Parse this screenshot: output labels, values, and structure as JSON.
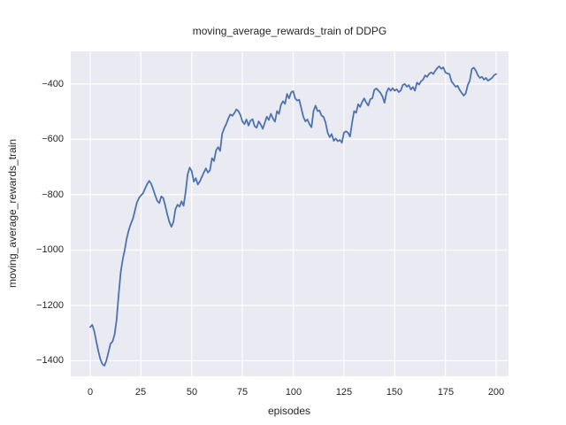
{
  "chart_data": {
    "type": "line",
    "title": "moving_average_rewards_train of DDPG",
    "xlabel": "episodes",
    "ylabel": "moving_average_rewards_train",
    "xlim": [
      -9.6,
      206.1
    ],
    "ylim": [
      -1456,
      -282
    ],
    "xticks": [
      0,
      25,
      50,
      75,
      100,
      125,
      150,
      175,
      200
    ],
    "xtick_labels": [
      "0",
      "25",
      "50",
      "75",
      "100",
      "125",
      "150",
      "175",
      "200"
    ],
    "yticks": [
      -400,
      -600,
      -800,
      -1000,
      -1200,
      -1400
    ],
    "ytick_labels": [
      "−400",
      "−600",
      "−800",
      "−1000",
      "−1200",
      "−1400"
    ],
    "grid": true,
    "legend": "none",
    "style": {
      "line_color": "#4C72B0",
      "axes_background": "#EAEAF2",
      "grid_color": "#FFFFFF",
      "text_color": "#262626",
      "line_width": 1.8,
      "grid_width": 1.2
    },
    "series": [
      {
        "name": "moving_average_rewards_train",
        "x_start": 0,
        "x_step": 1,
        "y": [
          -1278,
          -1270,
          -1293,
          -1330,
          -1365,
          -1395,
          -1412,
          -1418,
          -1398,
          -1368,
          -1338,
          -1330,
          -1305,
          -1250,
          -1160,
          -1080,
          -1035,
          -1000,
          -958,
          -928,
          -905,
          -888,
          -858,
          -828,
          -812,
          -802,
          -795,
          -778,
          -762,
          -750,
          -760,
          -780,
          -802,
          -822,
          -830,
          -806,
          -812,
          -840,
          -872,
          -898,
          -916,
          -898,
          -852,
          -836,
          -843,
          -824,
          -840,
          -790,
          -726,
          -702,
          -715,
          -753,
          -740,
          -763,
          -752,
          -736,
          -720,
          -705,
          -720,
          -712,
          -668,
          -678,
          -640,
          -628,
          -642,
          -580,
          -560,
          -545,
          -525,
          -510,
          -515,
          -505,
          -492,
          -498,
          -512,
          -535,
          -545,
          -528,
          -550,
          -532,
          -527,
          -552,
          -558,
          -535,
          -546,
          -562,
          -540,
          -518,
          -530,
          -508,
          -524,
          -536,
          -498,
          -508,
          -475,
          -462,
          -472,
          -436,
          -452,
          -430,
          -426,
          -452,
          -460,
          -457,
          -488,
          -518,
          -535,
          -528,
          -545,
          -556,
          -498,
          -478,
          -498,
          -496,
          -514,
          -519,
          -540,
          -576,
          -592,
          -581,
          -605,
          -597,
          -607,
          -602,
          -612,
          -576,
          -571,
          -576,
          -590,
          -540,
          -498,
          -504,
          -473,
          -483,
          -465,
          -452,
          -467,
          -478,
          -455,
          -452,
          -421,
          -416,
          -424,
          -432,
          -445,
          -468,
          -430,
          -415,
          -424,
          -415,
          -424,
          -419,
          -429,
          -424,
          -404,
          -400,
          -410,
          -404,
          -420,
          -411,
          -424,
          -395,
          -402,
          -390,
          -384,
          -369,
          -374,
          -363,
          -358,
          -364,
          -352,
          -342,
          -336,
          -345,
          -340,
          -358,
          -362,
          -364,
          -390,
          -400,
          -410,
          -406,
          -421,
          -432,
          -442,
          -434,
          -404,
          -388,
          -346,
          -341,
          -352,
          -368,
          -378,
          -374,
          -384,
          -378,
          -388,
          -383,
          -378,
          -368,
          -364
        ]
      }
    ]
  }
}
